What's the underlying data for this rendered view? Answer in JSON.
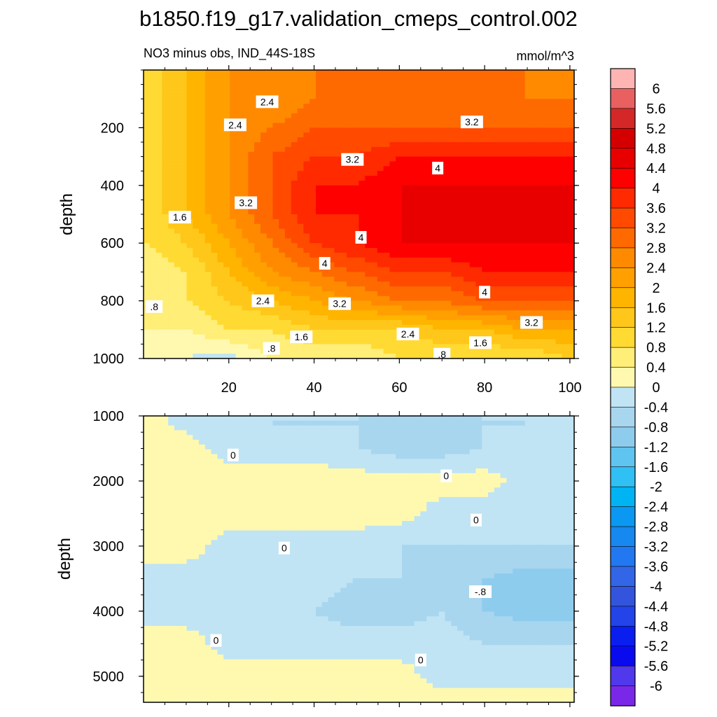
{
  "title": "b1850.f19_g17.validation_cmeps_control.002",
  "chart_data": [
    {
      "type": "heatmap",
      "panel": "upper",
      "subtitle_left": "NO3 minus obs, IND_44S-18S",
      "subtitle_right": "mmol/m^3",
      "xlabel": "",
      "ylabel": "depth",
      "xlim": [
        0,
        101
      ],
      "ylim": [
        1000,
        0
      ],
      "x_ticks": [
        "20",
        "40",
        "60",
        "80",
        "100"
      ],
      "y_ticks": [
        "200",
        "400",
        "600",
        "800",
        "1000"
      ],
      "description_grid": {
        "x": [
          0,
          10,
          20,
          30,
          40,
          50,
          60,
          70,
          80,
          90,
          100
        ],
        "y": [
          0,
          100,
          200,
          300,
          400,
          500,
          600,
          700,
          800,
          900,
          1000
        ],
        "values": [
          [
            0.8,
            1.6,
            2.4,
            2.4,
            2.8,
            2.8,
            2.8,
            2.8,
            2.8,
            2.8,
            2.4
          ],
          [
            0.8,
            1.6,
            2.4,
            2.4,
            2.8,
            2.8,
            2.8,
            2.8,
            3.2,
            2.8,
            2.8
          ],
          [
            0.8,
            1.6,
            2.4,
            2.8,
            3.2,
            3.2,
            3.2,
            3.2,
            3.2,
            3.2,
            3.2
          ],
          [
            0.8,
            1.6,
            2.4,
            3.2,
            3.6,
            3.6,
            4.0,
            4.0,
            4.0,
            4.0,
            4.0
          ],
          [
            0.8,
            1.6,
            2.4,
            3.2,
            4.0,
            4.0,
            4.4,
            4.4,
            4.4,
            4.4,
            4.4
          ],
          [
            0.8,
            1.6,
            2.4,
            3.2,
            4.0,
            4.0,
            4.4,
            4.4,
            4.4,
            4.4,
            4.4
          ],
          [
            0.8,
            1.2,
            2.0,
            2.8,
            3.6,
            4.0,
            4.4,
            4.4,
            4.4,
            4.4,
            4.4
          ],
          [
            0.4,
            0.8,
            1.6,
            2.4,
            2.8,
            3.2,
            3.6,
            3.6,
            4.0,
            4.0,
            4.0
          ],
          [
            0.4,
            0.8,
            1.2,
            1.6,
            2.0,
            2.4,
            2.8,
            2.8,
            3.2,
            3.2,
            3.2
          ],
          [
            0.4,
            0.4,
            0.8,
            0.8,
            1.2,
            1.2,
            1.2,
            1.6,
            1.6,
            2.0,
            2.0
          ],
          [
            0.4,
            0.0,
            -0.2,
            0.4,
            0.4,
            0.4,
            0.8,
            0.8,
            0.8,
            0.8,
            1.2
          ]
        ]
      },
      "contour_labels": [
        {
          "text": "2.4",
          "x": 29,
          "y": 110
        },
        {
          "text": "2.4",
          "x": 21.5,
          "y": 190
        },
        {
          "text": "3.2",
          "x": 77,
          "y": 180
        },
        {
          "text": "3.2",
          "x": 49,
          "y": 310
        },
        {
          "text": "4",
          "x": 69,
          "y": 340
        },
        {
          "text": "3.2",
          "x": 24,
          "y": 460
        },
        {
          "text": "1.6",
          "x": 8.5,
          "y": 510
        },
        {
          "text": "4",
          "x": 51,
          "y": 580
        },
        {
          "text": "4",
          "x": 42.5,
          "y": 670
        },
        {
          "text": "4",
          "x": 80,
          "y": 770
        },
        {
          "text": "2.4",
          "x": 28,
          "y": 800
        },
        {
          "text": "3.2",
          "x": 46,
          "y": 810
        },
        {
          "text": ".8",
          "x": 2.5,
          "y": 820
        },
        {
          "text": "3.2",
          "x": 91,
          "y": 875
        },
        {
          "text": "2.4",
          "x": 62,
          "y": 915
        },
        {
          "text": "1.6",
          "x": 37,
          "y": 925
        },
        {
          "text": ".8",
          "x": 30,
          "y": 965
        },
        {
          "text": "1.6",
          "x": 79,
          "y": 945
        },
        {
          "text": ".8",
          "x": 70,
          "y": 985
        }
      ]
    },
    {
      "type": "heatmap",
      "panel": "lower",
      "xlabel": "",
      "ylabel": "depth",
      "xlim": [
        0,
        101
      ],
      "ylim": [
        5400,
        1000
      ],
      "y_ticks": [
        "1000",
        "2000",
        "3000",
        "4000",
        "5000"
      ],
      "description_grid": {
        "x": [
          0,
          10,
          20,
          30,
          40,
          50,
          60,
          70,
          80,
          90,
          100
        ],
        "y": [
          1000,
          1500,
          2000,
          2500,
          3000,
          3500,
          4000,
          4500,
          5000,
          5400
        ],
        "values": [
          [
            0.2,
            -0.2,
            -0.4,
            -0.4,
            -0.4,
            -0.4,
            -0.4,
            -0.4,
            -0.4,
            -0.4,
            -0.2
          ],
          [
            0.2,
            0.2,
            -0.2,
            -0.4,
            -0.4,
            -0.4,
            -0.6,
            -0.6,
            -0.4,
            -0.4,
            -0.2
          ],
          [
            0.2,
            0.2,
            0.2,
            0.4,
            0.4,
            0.2,
            0.2,
            0.2,
            0.2,
            -0.2,
            -0.2
          ],
          [
            0.2,
            0.2,
            0.2,
            0.2,
            0.2,
            0.2,
            0.2,
            -0.2,
            -0.2,
            -0.4,
            -0.4
          ],
          [
            0.2,
            0.2,
            -0.2,
            -0.2,
            -0.2,
            -0.2,
            -0.4,
            -0.4,
            -0.4,
            -0.4,
            -0.4
          ],
          [
            -0.2,
            -0.2,
            -0.2,
            -0.2,
            -0.2,
            -0.4,
            -0.4,
            -0.6,
            -0.8,
            -1.0,
            -1.0
          ],
          [
            -0.2,
            -0.2,
            -0.2,
            -0.2,
            -0.4,
            -0.6,
            -0.6,
            -0.4,
            -0.8,
            -1.0,
            -1.0
          ],
          [
            0.2,
            0.2,
            -0.2,
            -0.2,
            -0.2,
            -0.2,
            -0.2,
            -0.2,
            -0.4,
            -0.4,
            -0.4
          ],
          [
            0.2,
            0.2,
            0.2,
            0.2,
            0.2,
            0.2,
            0.2,
            -0.2,
            -0.2,
            -0.2,
            -0.2
          ],
          [
            0.2,
            0.2,
            0.2,
            0.4,
            0.4,
            0.4,
            0.4,
            0.2,
            0.2,
            0.2,
            0.2
          ]
        ]
      },
      "contour_labels": [
        {
          "text": "0",
          "x": 21,
          "y": 1600
        },
        {
          "text": "0",
          "x": 71,
          "y": 1920
        },
        {
          "text": "0",
          "x": 78,
          "y": 2600
        },
        {
          "text": "0",
          "x": 33,
          "y": 3030
        },
        {
          "text": "-.8",
          "x": 79,
          "y": 3700
        },
        {
          "text": "0",
          "x": 17,
          "y": 4450
        },
        {
          "text": "0",
          "x": 65,
          "y": 4750
        }
      ]
    }
  ],
  "colorbar": {
    "labels": [
      "6",
      "5.6",
      "5.2",
      "4.8",
      "4.4",
      "4",
      "3.6",
      "3.2",
      "2.8",
      "2.4",
      "2",
      "1.6",
      "1.2",
      "0.8",
      "0.4",
      "0",
      "-0.4",
      "-0.8",
      "-1.2",
      "-1.6",
      "-2",
      "-2.4",
      "-2.8",
      "-3.2",
      "-3.6",
      "-4",
      "-4.4",
      "-4.8",
      "-5.2",
      "-5.6",
      "-6"
    ],
    "colors": [
      "#FFB4B4",
      "#E86060",
      "#D42828",
      "#D40000",
      "#E80000",
      "#FF0000",
      "#FF2A00",
      "#FF4A00",
      "#FF6A00",
      "#FF8A00",
      "#FFA000",
      "#FFB400",
      "#FFC71A",
      "#FFDA33",
      "#FFEE77",
      "#FFF9B0",
      "#C0E4F4",
      "#A8D6EE",
      "#8ECCEE",
      "#60C4F0",
      "#30C0F4",
      "#00B4F4",
      "#0A98F2",
      "#1688F0",
      "#2278F0",
      "#3366E6",
      "#3355DD",
      "#2244E8",
      "#0A1EF0",
      "#0A0AEE",
      "#5038EC",
      "#7A28E8"
    ]
  }
}
